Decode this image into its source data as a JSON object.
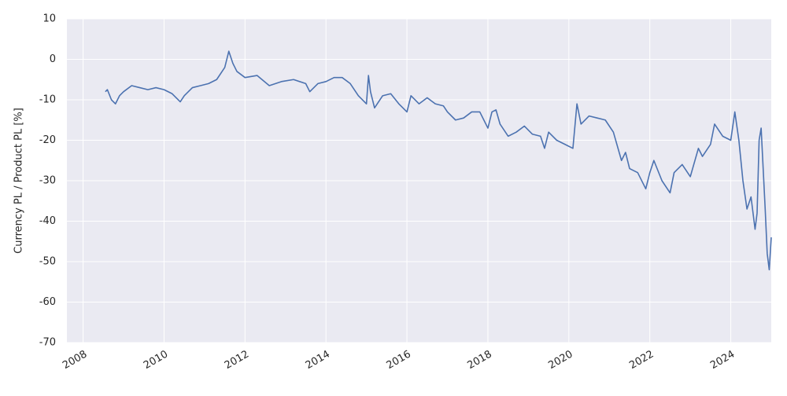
{
  "chart_data": {
    "type": "line",
    "ylabel": "Currency PL / Product PL [%]",
    "xlim": [
      2007.6,
      2025.0
    ],
    "xticks": [
      2008,
      2010,
      2012,
      2014,
      2016,
      2018,
      2020,
      2022,
      2024
    ],
    "ylim": [
      -70,
      10
    ],
    "yticks": [
      -70,
      -60,
      -50,
      -40,
      -30,
      -20,
      -10,
      0,
      10
    ],
    "grid": true,
    "x": [
      2008.55,
      2008.6,
      2008.7,
      2008.8,
      2008.9,
      2009.0,
      2009.2,
      2009.4,
      2009.6,
      2009.8,
      2010.0,
      2010.2,
      2010.4,
      2010.5,
      2010.7,
      2010.9,
      2011.1,
      2011.3,
      2011.5,
      2011.6,
      2011.7,
      2011.8,
      2012.0,
      2012.3,
      2012.6,
      2012.9,
      2013.2,
      2013.5,
      2013.6,
      2013.8,
      2014.0,
      2014.2,
      2014.4,
      2014.6,
      2014.8,
      2015.0,
      2015.05,
      2015.1,
      2015.2,
      2015.4,
      2015.6,
      2015.8,
      2016.0,
      2016.1,
      2016.3,
      2016.5,
      2016.7,
      2016.9,
      2017.0,
      2017.2,
      2017.4,
      2017.6,
      2017.8,
      2017.9,
      2018.0,
      2018.1,
      2018.2,
      2018.3,
      2018.5,
      2018.7,
      2018.9,
      2019.1,
      2019.3,
      2019.4,
      2019.5,
      2019.7,
      2019.9,
      2020.1,
      2020.2,
      2020.3,
      2020.5,
      2020.7,
      2020.9,
      2021.1,
      2021.3,
      2021.4,
      2021.5,
      2021.7,
      2021.9,
      2022.0,
      2022.1,
      2022.3,
      2022.5,
      2022.6,
      2022.8,
      2023.0,
      2023.2,
      2023.3,
      2023.5,
      2023.6,
      2023.8,
      2024.0,
      2024.1,
      2024.2,
      2024.3,
      2024.4,
      2024.5,
      2024.6,
      2024.65,
      2024.7,
      2024.75,
      2024.8,
      2024.85,
      2024.9,
      2024.95,
      2025.0
    ],
    "series": [
      {
        "color": "#4c72b0",
        "values": [
          -8,
          -7.5,
          -10,
          -11,
          -9,
          -8,
          -6.5,
          -7,
          -7.5,
          -7,
          -7.5,
          -8.5,
          -10.5,
          -9,
          -7,
          -6.5,
          -6,
          -5,
          -2,
          2,
          -1,
          -3,
          -4.5,
          -4,
          -6.5,
          -5.5,
          -5,
          -6,
          -8,
          -6,
          -5.5,
          -4.5,
          -4.5,
          -6,
          -9,
          -11,
          -4,
          -8,
          -12,
          -9,
          -8.5,
          -11,
          -13,
          -9,
          -11,
          -9.5,
          -11,
          -11.5,
          -13,
          -15,
          -14.5,
          -13,
          -13,
          -15,
          -17,
          -13,
          -12.5,
          -16,
          -19,
          -18,
          -16.5,
          -18.5,
          -19,
          -22,
          -18,
          -20,
          -21,
          -22,
          -11,
          -16,
          -14,
          -14.5,
          -15,
          -18,
          -25,
          -23,
          -27,
          -28,
          -32,
          -28,
          -25,
          -30,
          -33,
          -28,
          -26,
          -29,
          -22,
          -24,
          -21,
          -16,
          -19,
          -20,
          -13,
          -20,
          -30,
          -37,
          -34,
          -42,
          -38,
          -20,
          -17,
          -27,
          -37,
          -48,
          -52,
          -44
        ]
      }
    ]
  }
}
